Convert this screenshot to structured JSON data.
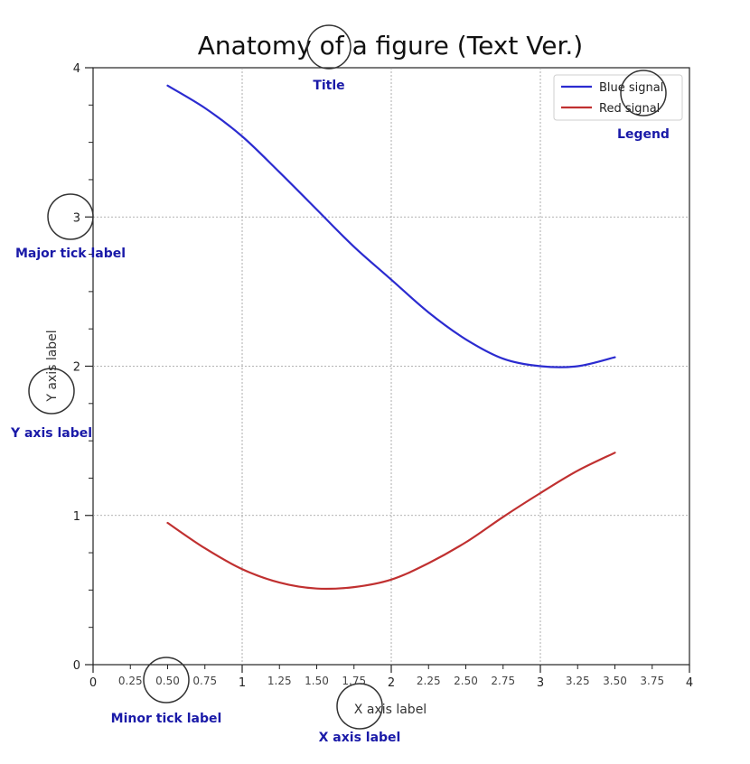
{
  "chart_data": {
    "type": "line",
    "title": "Anatomy of a figure (Text Ver.)",
    "xlabel": "X axis label",
    "ylabel": "Y axis label",
    "xlim": [
      0,
      4
    ],
    "ylim": [
      0,
      4
    ],
    "x_major_ticks": [
      "0",
      "1",
      "2",
      "3",
      "4"
    ],
    "x_minor_ticks": [
      "0.25",
      "0.50",
      "0.75",
      "1.25",
      "1.50",
      "1.75",
      "2.25",
      "2.50",
      "2.75",
      "3.25",
      "3.50",
      "3.75"
    ],
    "y_major_ticks": [
      "0",
      "1",
      "2",
      "3",
      "4"
    ],
    "grid": true,
    "legend_position": "top-right",
    "series": [
      {
        "name": "Blue signal",
        "color": "#2b2bd0",
        "x": [
          0.5,
          0.75,
          1.0,
          1.25,
          1.5,
          1.75,
          2.0,
          2.25,
          2.5,
          2.75,
          3.0,
          3.25,
          3.5
        ],
        "y": [
          3.88,
          3.73,
          3.54,
          3.3,
          3.05,
          2.8,
          2.58,
          2.36,
          2.18,
          2.05,
          2.0,
          2.0,
          2.06
        ]
      },
      {
        "name": "Red signal",
        "color": "#c03030",
        "x": [
          0.5,
          0.75,
          1.0,
          1.25,
          1.5,
          1.75,
          2.0,
          2.25,
          2.5,
          2.75,
          3.0,
          3.25,
          3.5
        ],
        "y": [
          0.95,
          0.78,
          0.64,
          0.55,
          0.51,
          0.52,
          0.57,
          0.68,
          0.82,
          0.99,
          1.15,
          1.3,
          1.42
        ]
      }
    ],
    "annotations": [
      "Title",
      "Legend",
      "Major tick label",
      "Y axis label",
      "Minor tick label",
      "X axis label"
    ]
  }
}
